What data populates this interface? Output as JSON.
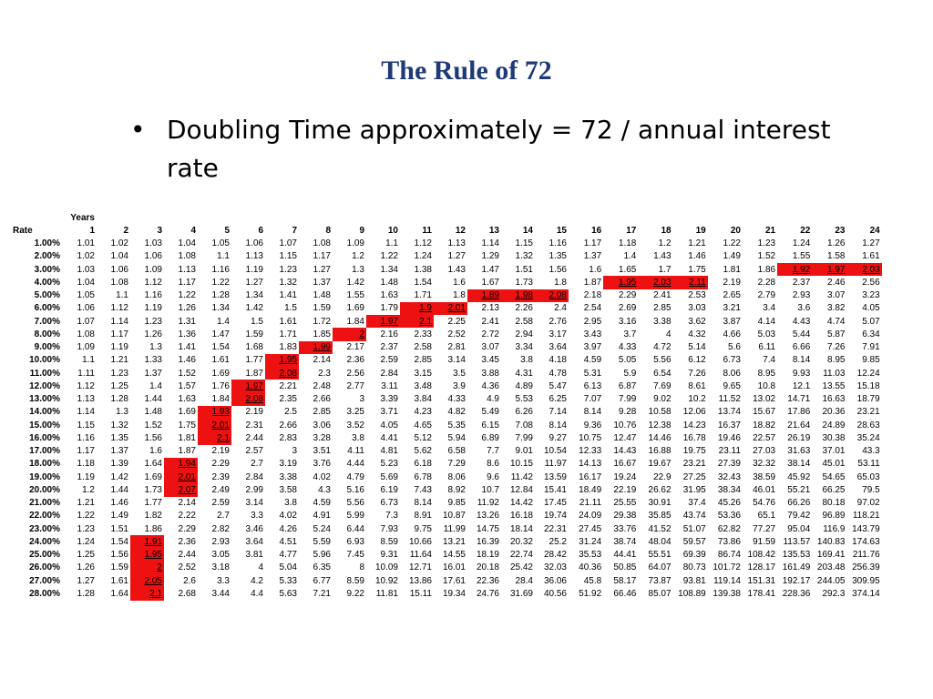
{
  "title": "The Rule of 72",
  "bullet": {
    "mark": "•",
    "text": "Doubling Time approximately = 72 / annual interest rate"
  },
  "table": {
    "years_label": "Years",
    "rate_label": "Rate",
    "years": [
      "1",
      "2",
      "3",
      "4",
      "5",
      "6",
      "7",
      "8",
      "9",
      "10",
      "11",
      "12",
      "13",
      "14",
      "15",
      "16",
      "17",
      "18",
      "19",
      "20",
      "21",
      "22",
      "23",
      "24"
    ],
    "highlight_color": "#ee1111",
    "rows": [
      {
        "rate": "1.00%",
        "values": [
          "1.01",
          "1.02",
          "1.03",
          "1.04",
          "1.05",
          "1.06",
          "1.07",
          "1.08",
          "1.09",
          "1.1",
          "1.12",
          "1.13",
          "1.14",
          "1.15",
          "1.16",
          "1.17",
          "1.18",
          "1.2",
          "1.21",
          "1.22",
          "1.23",
          "1.24",
          "1.26",
          "1.27"
        ],
        "highlight": []
      },
      {
        "rate": "2.00%",
        "values": [
          "1.02",
          "1.04",
          "1.06",
          "1.08",
          "1.1",
          "1.13",
          "1.15",
          "1.17",
          "1.2",
          "1.22",
          "1.24",
          "1.27",
          "1.29",
          "1.32",
          "1.35",
          "1.37",
          "1.4",
          "1.43",
          "1.46",
          "1.49",
          "1.52",
          "1.55",
          "1.58",
          "1.61"
        ],
        "highlight": []
      },
      {
        "rate": "3.00%",
        "values": [
          "1.03",
          "1.06",
          "1.09",
          "1.13",
          "1.16",
          "1.19",
          "1.23",
          "1.27",
          "1.3",
          "1.34",
          "1.38",
          "1.43",
          "1.47",
          "1.51",
          "1.56",
          "1.6",
          "1.65",
          "1.7",
          "1.75",
          "1.81",
          "1.86",
          "1.92",
          "1.97",
          "2.03"
        ],
        "highlight": [
          22,
          23,
          24
        ]
      },
      {
        "rate": "4.00%",
        "values": [
          "1.04",
          "1.08",
          "1.12",
          "1.17",
          "1.22",
          "1.27",
          "1.32",
          "1.37",
          "1.42",
          "1.48",
          "1.54",
          "1.6",
          "1.67",
          "1.73",
          "1.8",
          "1.87",
          "1.95",
          "2.03",
          "2.11",
          "2.19",
          "2.28",
          "2.37",
          "2.46",
          "2.56"
        ],
        "highlight": [
          17,
          18,
          19
        ]
      },
      {
        "rate": "5.00%",
        "values": [
          "1.05",
          "1.1",
          "1.16",
          "1.22",
          "1.28",
          "1.34",
          "1.41",
          "1.48",
          "1.55",
          "1.63",
          "1.71",
          "1.8",
          "1.89",
          "1.98",
          "2.08",
          "2.18",
          "2.29",
          "2.41",
          "2.53",
          "2.65",
          "2.79",
          "2.93",
          "3.07",
          "3.23"
        ],
        "highlight": [
          13,
          14,
          15
        ]
      },
      {
        "rate": "6.00%",
        "values": [
          "1.06",
          "1.12",
          "1.19",
          "1.26",
          "1.34",
          "1.42",
          "1.5",
          "1.59",
          "1.69",
          "1.79",
          "1.9",
          "2.01",
          "2.13",
          "2.26",
          "2.4",
          "2.54",
          "2.69",
          "2.85",
          "3.03",
          "3.21",
          "3.4",
          "3.6",
          "3.82",
          "4.05"
        ],
        "highlight": [
          11,
          12
        ]
      },
      {
        "rate": "7.00%",
        "values": [
          "1.07",
          "1.14",
          "1.23",
          "1.31",
          "1.4",
          "1.5",
          "1.61",
          "1.72",
          "1.84",
          "1.97",
          "2.1",
          "2.25",
          "2.41",
          "2.58",
          "2.76",
          "2.95",
          "3.16",
          "3.38",
          "3.62",
          "3.87",
          "4.14",
          "4.43",
          "4.74",
          "5.07"
        ],
        "highlight": [
          10,
          11
        ]
      },
      {
        "rate": "8.00%",
        "values": [
          "1.08",
          "1.17",
          "1.26",
          "1.36",
          "1.47",
          "1.59",
          "1.71",
          "1.85",
          "2",
          "2.16",
          "2.33",
          "2.52",
          "2.72",
          "2.94",
          "3.17",
          "3.43",
          "3.7",
          "4",
          "4.32",
          "4.66",
          "5.03",
          "5.44",
          "5.87",
          "6.34"
        ],
        "highlight": [
          9
        ]
      },
      {
        "rate": "9.00%",
        "values": [
          "1.09",
          "1.19",
          "1.3",
          "1.41",
          "1.54",
          "1.68",
          "1.83",
          "1.99",
          "2.17",
          "2.37",
          "2.58",
          "2.81",
          "3.07",
          "3.34",
          "3.64",
          "3.97",
          "4.33",
          "4.72",
          "5.14",
          "5.6",
          "6.11",
          "6.66",
          "7.26",
          "7.91"
        ],
        "highlight": [
          8
        ]
      },
      {
        "rate": "10.00%",
        "values": [
          "1.1",
          "1.21",
          "1.33",
          "1.46",
          "1.61",
          "1.77",
          "1.95",
          "2.14",
          "2.36",
          "2.59",
          "2.85",
          "3.14",
          "3.45",
          "3.8",
          "4.18",
          "4.59",
          "5.05",
          "5.56",
          "6.12",
          "6.73",
          "7.4",
          "8.14",
          "8.95",
          "9.85"
        ],
        "highlight": [
          7
        ]
      },
      {
        "rate": "11.00%",
        "values": [
          "1.11",
          "1.23",
          "1.37",
          "1.52",
          "1.69",
          "1.87",
          "2.08",
          "2.3",
          "2.56",
          "2.84",
          "3.15",
          "3.5",
          "3.88",
          "4.31",
          "4.78",
          "5.31",
          "5.9",
          "6.54",
          "7.26",
          "8.06",
          "8.95",
          "9.93",
          "11.03",
          "12.24"
        ],
        "highlight": [
          7
        ]
      },
      {
        "rate": "12.00%",
        "values": [
          "1.12",
          "1.25",
          "1.4",
          "1.57",
          "1.76",
          "1.97",
          "2.21",
          "2.48",
          "2.77",
          "3.11",
          "3.48",
          "3.9",
          "4.36",
          "4.89",
          "5.47",
          "6.13",
          "6.87",
          "7.69",
          "8.61",
          "9.65",
          "10.8",
          "12.1",
          "13.55",
          "15.18"
        ],
        "highlight": [
          6
        ]
      },
      {
        "rate": "13.00%",
        "values": [
          "1.13",
          "1.28",
          "1.44",
          "1.63",
          "1.84",
          "2.08",
          "2.35",
          "2.66",
          "3",
          "3.39",
          "3.84",
          "4.33",
          "4.9",
          "5.53",
          "6.25",
          "7.07",
          "7.99",
          "9.02",
          "10.2",
          "11.52",
          "13.02",
          "14.71",
          "16.63",
          "18.79"
        ],
        "highlight": [
          6
        ]
      },
      {
        "rate": "14.00%",
        "values": [
          "1.14",
          "1.3",
          "1.48",
          "1.69",
          "1.93",
          "2.19",
          "2.5",
          "2.85",
          "3.25",
          "3.71",
          "4.23",
          "4.82",
          "5.49",
          "6.26",
          "7.14",
          "8.14",
          "9.28",
          "10.58",
          "12.06",
          "13.74",
          "15.67",
          "17.86",
          "20.36",
          "23.21"
        ],
        "highlight": [
          5
        ]
      },
      {
        "rate": "15.00%",
        "values": [
          "1.15",
          "1.32",
          "1.52",
          "1.75",
          "2.01",
          "2.31",
          "2.66",
          "3.06",
          "3.52",
          "4.05",
          "4.65",
          "5.35",
          "6.15",
          "7.08",
          "8.14",
          "9.36",
          "10.76",
          "12.38",
          "14.23",
          "16.37",
          "18.82",
          "21.64",
          "24.89",
          "28.63"
        ],
        "highlight": [
          5
        ]
      },
      {
        "rate": "16.00%",
        "values": [
          "1.16",
          "1.35",
          "1.56",
          "1.81",
          "2.1",
          "2.44",
          "2.83",
          "3.28",
          "3.8",
          "4.41",
          "5.12",
          "5.94",
          "6.89",
          "7.99",
          "9.27",
          "10.75",
          "12.47",
          "14.46",
          "16.78",
          "19.46",
          "22.57",
          "26.19",
          "30.38",
          "35.24"
        ],
        "highlight": [
          5
        ]
      },
      {
        "rate": "17.00%",
        "values": [
          "1.17",
          "1.37",
          "1.6",
          "1.87",
          "2.19",
          "2.57",
          "3",
          "3.51",
          "4.11",
          "4.81",
          "5.62",
          "6.58",
          "7.7",
          "9.01",
          "10.54",
          "12.33",
          "14.43",
          "16.88",
          "19.75",
          "23.11",
          "27.03",
          "31.63",
          "37.01",
          "43.3"
        ],
        "highlight": []
      },
      {
        "rate": "18.00%",
        "values": [
          "1.18",
          "1.39",
          "1.64",
          "1.94",
          "2.29",
          "2.7",
          "3.19",
          "3.76",
          "4.44",
          "5.23",
          "6.18",
          "7.29",
          "8.6",
          "10.15",
          "11.97",
          "14.13",
          "16.67",
          "19.67",
          "23.21",
          "27.39",
          "32.32",
          "38.14",
          "45.01",
          "53.11"
        ],
        "highlight": [
          4
        ]
      },
      {
        "rate": "19.00%",
        "values": [
          "1.19",
          "1.42",
          "1.69",
          "2.01",
          "2.39",
          "2.84",
          "3.38",
          "4.02",
          "4.79",
          "5.69",
          "6.78",
          "8.06",
          "9.6",
          "11.42",
          "13.59",
          "16.17",
          "19.24",
          "22.9",
          "27.25",
          "32.43",
          "38.59",
          "45.92",
          "54.65",
          "65.03"
        ],
        "highlight": [
          4
        ]
      },
      {
        "rate": "20.00%",
        "values": [
          "1.2",
          "1.44",
          "1.73",
          "2.07",
          "2.49",
          "2.99",
          "3.58",
          "4.3",
          "5.16",
          "6.19",
          "7.43",
          "8.92",
          "10.7",
          "12.84",
          "15.41",
          "18.49",
          "22.19",
          "26.62",
          "31.95",
          "38.34",
          "46.01",
          "55.21",
          "66.25",
          "79.5"
        ],
        "highlight": [
          4
        ]
      },
      {
        "rate": "21.00%",
        "values": [
          "1.21",
          "1.46",
          "1.77",
          "2.14",
          "2.59",
          "3.14",
          "3.8",
          "4.59",
          "5.56",
          "6.73",
          "8.14",
          "9.85",
          "11.92",
          "14.42",
          "17.45",
          "21.11",
          "25.55",
          "30.91",
          "37.4",
          "45.26",
          "54.76",
          "66.26",
          "80.18",
          "97.02"
        ],
        "highlight": []
      },
      {
        "rate": "22.00%",
        "values": [
          "1.22",
          "1.49",
          "1.82",
          "2.22",
          "2.7",
          "3.3",
          "4.02",
          "4.91",
          "5.99",
          "7.3",
          "8.91",
          "10.87",
          "13.26",
          "16.18",
          "19.74",
          "24.09",
          "29.38",
          "35.85",
          "43.74",
          "53.36",
          "65.1",
          "79.42",
          "96.89",
          "118.21"
        ],
        "highlight": []
      },
      {
        "rate": "23.00%",
        "values": [
          "1.23",
          "1.51",
          "1.86",
          "2.29",
          "2.82",
          "3.46",
          "4.26",
          "5.24",
          "6.44",
          "7.93",
          "9.75",
          "11.99",
          "14.75",
          "18.14",
          "22.31",
          "27.45",
          "33.76",
          "41.52",
          "51.07",
          "62.82",
          "77.27",
          "95.04",
          "116.9",
          "143.79"
        ],
        "highlight": []
      },
      {
        "rate": "24.00%",
        "values": [
          "1.24",
          "1.54",
          "1.91",
          "2.36",
          "2.93",
          "3.64",
          "4.51",
          "5.59",
          "6.93",
          "8.59",
          "10.66",
          "13.21",
          "16.39",
          "20.32",
          "25.2",
          "31.24",
          "38.74",
          "48.04",
          "59.57",
          "73.86",
          "91.59",
          "113.57",
          "140.83",
          "174.63"
        ],
        "highlight": [
          3
        ]
      },
      {
        "rate": "25.00%",
        "values": [
          "1.25",
          "1.56",
          "1.95",
          "2.44",
          "3.05",
          "3.81",
          "4.77",
          "5.96",
          "7.45",
          "9.31",
          "11.64",
          "14.55",
          "18.19",
          "22.74",
          "28.42",
          "35.53",
          "44.41",
          "55.51",
          "69.39",
          "86.74",
          "108.42",
          "135.53",
          "169.41",
          "211.76"
        ],
        "highlight": [
          3
        ]
      },
      {
        "rate": "26.00%",
        "values": [
          "1.26",
          "1.59",
          "2",
          "2.52",
          "3.18",
          "4",
          "5.04",
          "6.35",
          "8",
          "10.09",
          "12.71",
          "16.01",
          "20.18",
          "25.42",
          "32.03",
          "40.36",
          "50.85",
          "64.07",
          "80.73",
          "101.72",
          "128.17",
          "161.49",
          "203.48",
          "256.39"
        ],
        "highlight": [
          3
        ]
      },
      {
        "rate": "27.00%",
        "values": [
          "1.27",
          "1.61",
          "2.05",
          "2.6",
          "3.3",
          "4.2",
          "5.33",
          "6.77",
          "8.59",
          "10.92",
          "13.86",
          "17.61",
          "22.36",
          "28.4",
          "36.06",
          "45.8",
          "58.17",
          "73.87",
          "93.81",
          "119.14",
          "151.31",
          "192.17",
          "244.05",
          "309.95"
        ],
        "highlight": [
          3
        ]
      },
      {
        "rate": "28.00%",
        "values": [
          "1.28",
          "1.64",
          "2.1",
          "2.68",
          "3.44",
          "4.4",
          "5.63",
          "7.21",
          "9.22",
          "11.81",
          "15.11",
          "19.34",
          "24.76",
          "31.69",
          "40.56",
          "51.92",
          "66.46",
          "85.07",
          "108.89",
          "139.38",
          "178.41",
          "228.36",
          "292.3",
          "374.14"
        ],
        "highlight": [
          3
        ]
      }
    ]
  }
}
